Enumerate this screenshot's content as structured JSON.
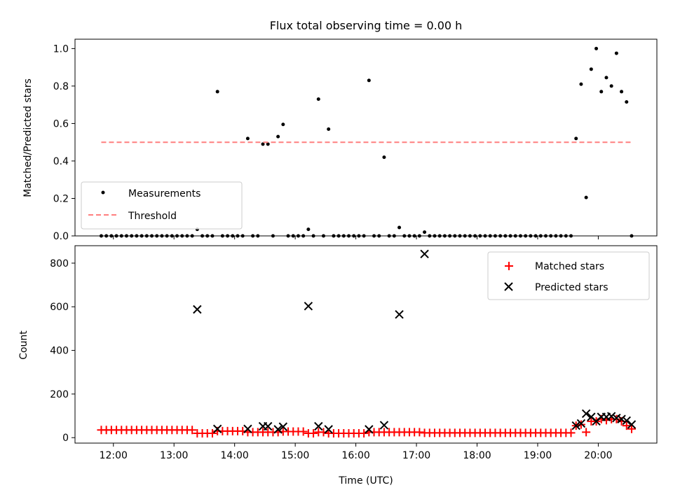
{
  "chart_data": [
    {
      "type": "scatter",
      "title": "Flux total observing time = 0.00 h",
      "xlabel": "",
      "ylabel": "Matched/Predicted stars",
      "xlim": [
        "11:22",
        "20:58"
      ],
      "ylim": [
        0,
        1.05
      ],
      "xticks": [
        "12:00",
        "13:00",
        "14:00",
        "15:00",
        "16:00",
        "17:00",
        "18:00",
        "19:00",
        "20:00"
      ],
      "yticks": [
        "0.0",
        "0.2",
        "0.4",
        "0.6",
        "0.8",
        "1.0"
      ],
      "legend": {
        "position": "lower-left",
        "entries": [
          "Measurements",
          "Threshold"
        ]
      },
      "series": [
        {
          "name": "Measurements",
          "marker": "dot",
          "color": "#000000",
          "points": [
            [
              "11:48",
              0
            ],
            [
              "11:53",
              0
            ],
            [
              "11:58",
              0
            ],
            [
              "12:03",
              0
            ],
            [
              "12:08",
              0
            ],
            [
              "12:13",
              0
            ],
            [
              "12:18",
              0
            ],
            [
              "12:23",
              0
            ],
            [
              "12:28",
              0
            ],
            [
              "12:33",
              0
            ],
            [
              "12:38",
              0
            ],
            [
              "12:43",
              0
            ],
            [
              "12:48",
              0
            ],
            [
              "12:53",
              0
            ],
            [
              "12:58",
              0
            ],
            [
              "13:03",
              0
            ],
            [
              "13:08",
              0
            ],
            [
              "13:13",
              0
            ],
            [
              "13:18",
              0
            ],
            [
              "13:23",
              0.035
            ],
            [
              "13:28",
              0
            ],
            [
              "13:33",
              0
            ],
            [
              "13:38",
              0
            ],
            [
              "13:43",
              0.77
            ],
            [
              "13:48",
              0
            ],
            [
              "13:53",
              0
            ],
            [
              "13:58",
              0
            ],
            [
              "14:03",
              0
            ],
            [
              "14:08",
              0
            ],
            [
              "14:13",
              0.52
            ],
            [
              "14:18",
              0
            ],
            [
              "14:23",
              0
            ],
            [
              "14:28",
              0.49
            ],
            [
              "14:33",
              0.49
            ],
            [
              "14:38",
              0
            ],
            [
              "14:43",
              0.53
            ],
            [
              "14:48",
              0.595
            ],
            [
              "14:53",
              0
            ],
            [
              "14:58",
              0
            ],
            [
              "15:03",
              0
            ],
            [
              "15:08",
              0
            ],
            [
              "15:13",
              0.035
            ],
            [
              "15:18",
              0
            ],
            [
              "15:23",
              0.73
            ],
            [
              "15:28",
              0
            ],
            [
              "15:33",
              0.57
            ],
            [
              "15:38",
              0
            ],
            [
              "15:43",
              0
            ],
            [
              "15:48",
              0
            ],
            [
              "15:53",
              0
            ],
            [
              "15:58",
              0
            ],
            [
              "16:03",
              0
            ],
            [
              "16:08",
              0
            ],
            [
              "16:13",
              0.83
            ],
            [
              "16:18",
              0
            ],
            [
              "16:23",
              0
            ],
            [
              "16:28",
              0.42
            ],
            [
              "16:33",
              0
            ],
            [
              "16:38",
              0
            ],
            [
              "16:43",
              0.045
            ],
            [
              "16:48",
              0
            ],
            [
              "16:53",
              0
            ],
            [
              "16:58",
              0
            ],
            [
              "17:03",
              0
            ],
            [
              "17:08",
              0.02
            ],
            [
              "17:13",
              0
            ],
            [
              "17:18",
              0
            ],
            [
              "17:23",
              0
            ],
            [
              "17:28",
              0
            ],
            [
              "17:33",
              0
            ],
            [
              "17:38",
              0
            ],
            [
              "17:43",
              0
            ],
            [
              "17:48",
              0
            ],
            [
              "17:53",
              0
            ],
            [
              "17:58",
              0
            ],
            [
              "18:03",
              0
            ],
            [
              "18:08",
              0
            ],
            [
              "18:13",
              0
            ],
            [
              "18:18",
              0
            ],
            [
              "18:23",
              0
            ],
            [
              "18:28",
              0
            ],
            [
              "18:33",
              0
            ],
            [
              "18:38",
              0
            ],
            [
              "18:43",
              0
            ],
            [
              "18:48",
              0
            ],
            [
              "18:53",
              0
            ],
            [
              "18:58",
              0
            ],
            [
              "19:03",
              0
            ],
            [
              "19:08",
              0
            ],
            [
              "19:13",
              0
            ],
            [
              "19:18",
              0
            ],
            [
              "19:23",
              0
            ],
            [
              "19:28",
              0
            ],
            [
              "19:33",
              0
            ],
            [
              "19:38",
              0.52
            ],
            [
              "19:43",
              0.81
            ],
            [
              "19:48",
              0.205
            ],
            [
              "19:53",
              0.89
            ],
            [
              "19:58",
              1.0
            ],
            [
              "20:03",
              0.77
            ],
            [
              "20:08",
              0.845
            ],
            [
              "20:13",
              0.8
            ],
            [
              "20:18",
              0.975
            ],
            [
              "20:23",
              0.77
            ],
            [
              "20:28",
              0.715
            ],
            [
              "20:33",
              0
            ]
          ]
        },
        {
          "name": "Threshold",
          "marker": "dashed-line",
          "color": "#ff7f7f",
          "points": [
            [
              "11:48",
              0.5
            ],
            [
              "20:33",
              0.5
            ]
          ]
        }
      ]
    },
    {
      "type": "scatter",
      "title": "",
      "xlabel": "Time (UTC)",
      "ylabel": "Count",
      "xlim": [
        "11:22",
        "20:58"
      ],
      "ylim": [
        -25,
        880
      ],
      "xticks": [
        "12:00",
        "13:00",
        "14:00",
        "15:00",
        "16:00",
        "17:00",
        "18:00",
        "19:00",
        "20:00"
      ],
      "yticks": [
        "0",
        "200",
        "400",
        "600",
        "800"
      ],
      "legend": {
        "position": "top-right",
        "entries": [
          "Matched stars",
          "Predicted stars"
        ]
      },
      "series": [
        {
          "name": "Matched stars",
          "marker": "plus",
          "color": "#ff0000",
          "points": [
            [
              "11:48",
              35
            ],
            [
              "11:53",
              35
            ],
            [
              "11:58",
              35
            ],
            [
              "12:03",
              35
            ],
            [
              "12:08",
              35
            ],
            [
              "12:13",
              35
            ],
            [
              "12:18",
              35
            ],
            [
              "12:23",
              35
            ],
            [
              "12:28",
              35
            ],
            [
              "12:33",
              35
            ],
            [
              "12:38",
              35
            ],
            [
              "12:43",
              35
            ],
            [
              "12:48",
              35
            ],
            [
              "12:53",
              35
            ],
            [
              "12:58",
              35
            ],
            [
              "13:03",
              35
            ],
            [
              "13:08",
              35
            ],
            [
              "13:13",
              35
            ],
            [
              "13:18",
              35
            ],
            [
              "13:23",
              20
            ],
            [
              "13:28",
              20
            ],
            [
              "13:33",
              20
            ],
            [
              "13:38",
              20
            ],
            [
              "13:43",
              30
            ],
            [
              "13:48",
              30
            ],
            [
              "13:53",
              30
            ],
            [
              "13:58",
              30
            ],
            [
              "14:03",
              30
            ],
            [
              "14:08",
              30
            ],
            [
              "14:13",
              25
            ],
            [
              "14:18",
              25
            ],
            [
              "14:23",
              25
            ],
            [
              "14:28",
              25
            ],
            [
              "14:33",
              25
            ],
            [
              "14:38",
              25
            ],
            [
              "14:43",
              25
            ],
            [
              "14:48",
              28
            ],
            [
              "14:53",
              28
            ],
            [
              "14:58",
              28
            ],
            [
              "15:03",
              28
            ],
            [
              "15:08",
              28
            ],
            [
              "15:13",
              20
            ],
            [
              "15:18",
              20
            ],
            [
              "15:23",
              25
            ],
            [
              "15:28",
              25
            ],
            [
              "15:33",
              20
            ],
            [
              "15:38",
              20
            ],
            [
              "15:43",
              20
            ],
            [
              "15:48",
              20
            ],
            [
              "15:53",
              20
            ],
            [
              "15:58",
              20
            ],
            [
              "16:03",
              20
            ],
            [
              "16:08",
              20
            ],
            [
              "16:13",
              25
            ],
            [
              "16:18",
              25
            ],
            [
              "16:23",
              25
            ],
            [
              "16:28",
              25
            ],
            [
              "16:33",
              25
            ],
            [
              "16:38",
              25
            ],
            [
              "16:43",
              25
            ],
            [
              "16:48",
              25
            ],
            [
              "16:53",
              25
            ],
            [
              "16:58",
              25
            ],
            [
              "17:03",
              25
            ],
            [
              "17:08",
              22
            ],
            [
              "17:13",
              22
            ],
            [
              "17:18",
              22
            ],
            [
              "17:23",
              22
            ],
            [
              "17:28",
              22
            ],
            [
              "17:33",
              22
            ],
            [
              "17:38",
              22
            ],
            [
              "17:43",
              22
            ],
            [
              "17:48",
              22
            ],
            [
              "17:53",
              22
            ],
            [
              "17:58",
              22
            ],
            [
              "18:03",
              22
            ],
            [
              "18:08",
              22
            ],
            [
              "18:13",
              22
            ],
            [
              "18:18",
              22
            ],
            [
              "18:23",
              22
            ],
            [
              "18:28",
              22
            ],
            [
              "18:33",
              22
            ],
            [
              "18:38",
              22
            ],
            [
              "18:43",
              22
            ],
            [
              "18:48",
              22
            ],
            [
              "18:53",
              22
            ],
            [
              "18:58",
              22
            ],
            [
              "19:03",
              22
            ],
            [
              "19:08",
              22
            ],
            [
              "19:13",
              22
            ],
            [
              "19:18",
              22
            ],
            [
              "19:23",
              22
            ],
            [
              "19:28",
              22
            ],
            [
              "19:33",
              22
            ],
            [
              "19:38",
              55
            ],
            [
              "19:43",
              60
            ],
            [
              "19:48",
              25
            ],
            [
              "19:53",
              75
            ],
            [
              "19:58",
              75
            ],
            [
              "20:03",
              85
            ],
            [
              "20:08",
              80
            ],
            [
              "20:13",
              85
            ],
            [
              "20:18",
              85
            ],
            [
              "20:23",
              75
            ],
            [
              "20:28",
              55
            ],
            [
              "20:33",
              40
            ]
          ]
        },
        {
          "name": "Predicted stars",
          "marker": "x",
          "color": "#000000",
          "points": [
            [
              "13:23",
              588
            ],
            [
              "13:43",
              40
            ],
            [
              "14:13",
              40
            ],
            [
              "14:28",
              52
            ],
            [
              "14:33",
              52
            ],
            [
              "14:43",
              38
            ],
            [
              "14:48",
              50
            ],
            [
              "15:13",
              603
            ],
            [
              "15:23",
              52
            ],
            [
              "15:33",
              38
            ],
            [
              "16:13",
              38
            ],
            [
              "16:28",
              57
            ],
            [
              "16:43",
              565
            ],
            [
              "17:08",
              842
            ],
            [
              "19:38",
              55
            ],
            [
              "19:43",
              65
            ],
            [
              "19:48",
              110
            ],
            [
              "19:53",
              95
            ],
            [
              "19:58",
              75
            ],
            [
              "20:03",
              95
            ],
            [
              "20:08",
              95
            ],
            [
              "20:13",
              98
            ],
            [
              "20:18",
              90
            ],
            [
              "20:23",
              85
            ],
            [
              "20:28",
              78
            ],
            [
              "20:33",
              60
            ]
          ]
        }
      ]
    }
  ]
}
